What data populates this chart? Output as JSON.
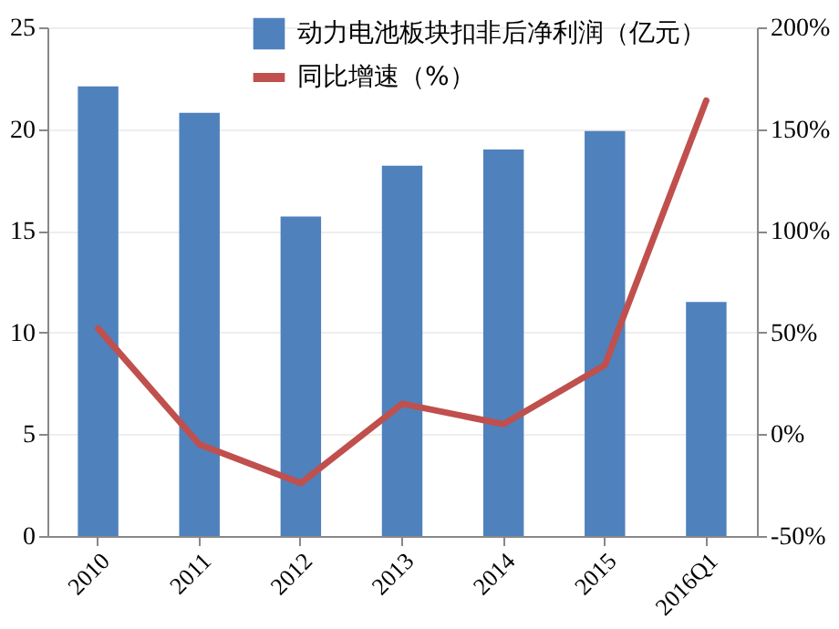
{
  "chart_data": {
    "type": "bar",
    "categories": [
      "2010",
      "2011",
      "2012",
      "2013",
      "2014",
      "2015",
      "2016Q1"
    ],
    "series": [
      {
        "name": "动力电池板块扣非后净利润（亿元）",
        "color": "#4f81bd",
        "values": [
          22.1,
          20.8,
          15.7,
          18.2,
          19.0,
          19.9,
          11.5
        ]
      },
      {
        "name": "同比增速（%）",
        "type": "line",
        "axis": "y2",
        "color": "#c0504d",
        "values": [
          52,
          -5,
          -24,
          15,
          5,
          34,
          164
        ]
      }
    ],
    "ylim": [
      0,
      25
    ],
    "yticks": [
      0,
      5,
      10,
      15,
      20,
      25
    ],
    "y2lim": [
      -50,
      200
    ],
    "y2ticks": [
      {
        "value": -50,
        "label": "-50%"
      },
      {
        "value": 0,
        "label": "0%"
      },
      {
        "value": 50,
        "label": "50%"
      },
      {
        "value": 100,
        "label": "100%"
      },
      {
        "value": 150,
        "label": "150%"
      },
      {
        "value": 200,
        "label": "200%"
      }
    ],
    "grid": "y",
    "legend": "top",
    "marker": "none",
    "line_style": "solid"
  }
}
